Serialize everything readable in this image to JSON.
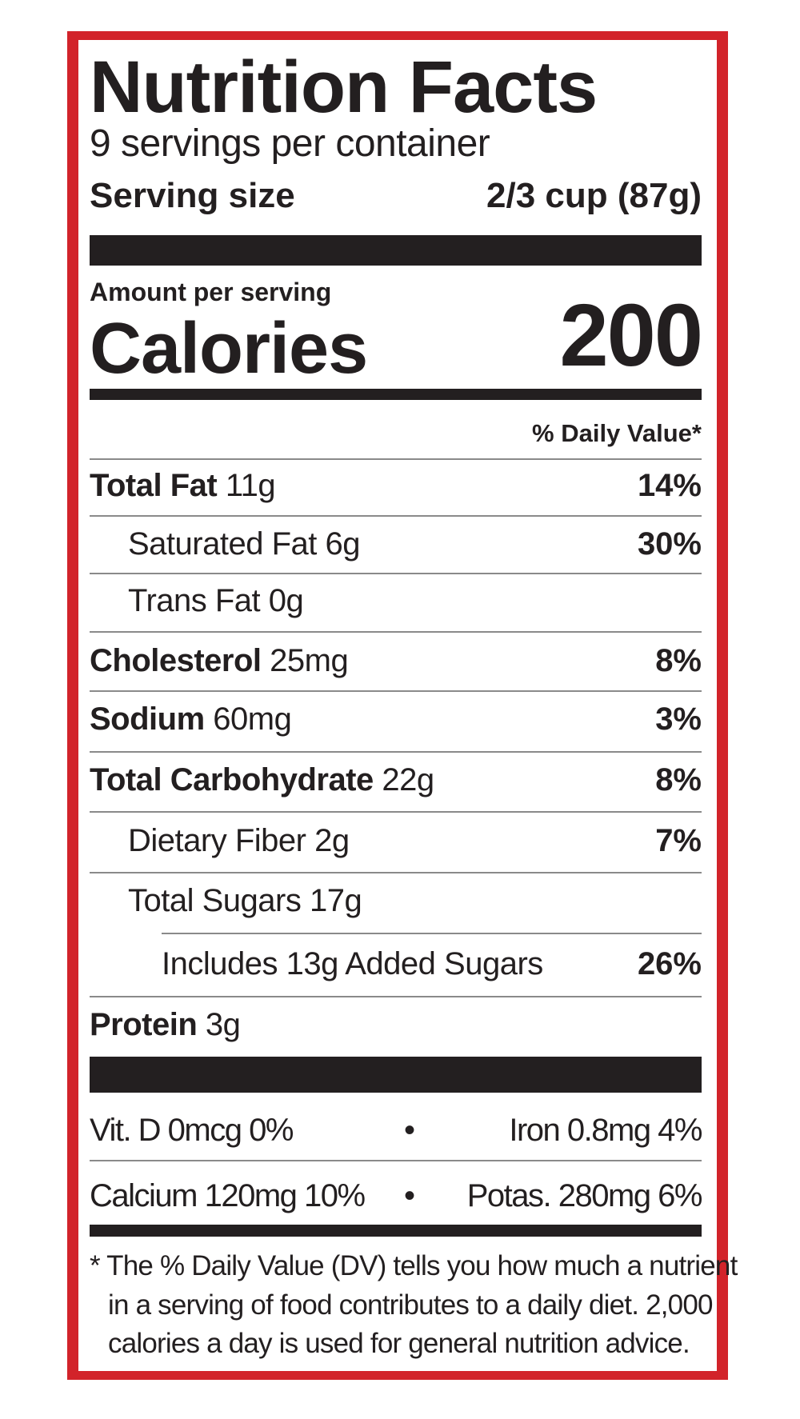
{
  "header": {
    "title": "Nutrition Facts",
    "servings": "9 servings per container",
    "serving_size_label": "Serving size",
    "serving_size": "2/3 cup (87g)"
  },
  "calories": {
    "label_top": "Amount per serving",
    "label": "Calories",
    "value": "200"
  },
  "dv_header": "% Daily Value*",
  "nutrients": [
    {
      "name": "Total Fat",
      "amount": "11g",
      "dv": "14%",
      "level": 0
    },
    {
      "name": "Saturated Fat",
      "amount": "6g",
      "dv": "30%",
      "level": 1
    },
    {
      "name": "Trans Fat",
      "amount": "0g",
      "level": 1
    },
    {
      "name": "Cholesterol",
      "amount": "25mg",
      "dv": "8%",
      "level": 0
    },
    {
      "name": "Sodium",
      "amount": "60mg",
      "dv": "3%",
      "level": 0
    },
    {
      "name": "Total Carbohydrate",
      "amount": "22g",
      "dv": "8%",
      "level": 0
    },
    {
      "name": "Dietary Fiber",
      "amount": "2g",
      "dv": "7%",
      "level": 1
    },
    {
      "name": "Total Sugars",
      "amount": "17g",
      "level": 1
    },
    {
      "name": "Includes 13g Added Sugars",
      "dv": "26%",
      "level": 2
    },
    {
      "name": "Protein",
      "amount": "3g",
      "level": 0
    }
  ],
  "vitamins": [
    [
      "Vit. D 0mcg 0%",
      "Iron 0.8mg 4%"
    ],
    [
      "Calcium 120mg 10%",
      "Potas. 280mg 6%"
    ]
  ],
  "footnote": [
    "* The % Daily Value (DV) tells you how much a nutrient",
    "in a serving of food contributes to a daily diet. 2,000",
    "calories a day is used for general nutrition advice."
  ]
}
